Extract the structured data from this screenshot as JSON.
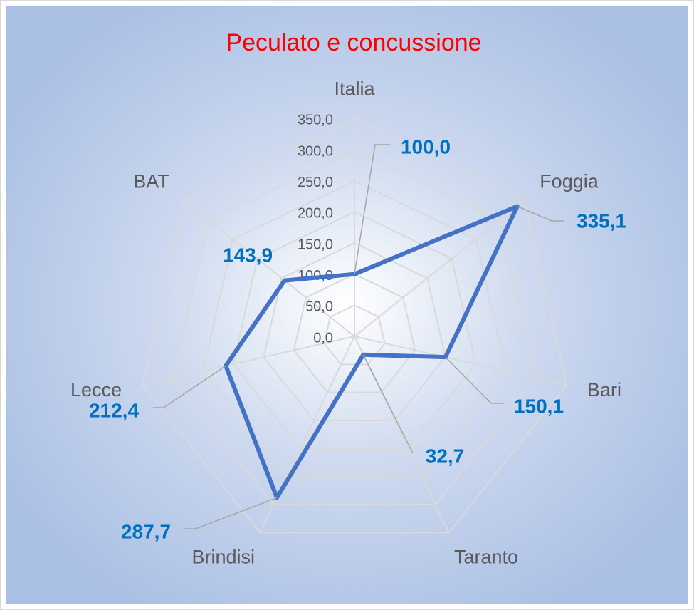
{
  "chart_data": {
    "type": "radar",
    "title": "Peculato e concussione",
    "categories": [
      "Italia",
      "Foggia",
      "Bari",
      "Taranto",
      "Brindisi",
      "Lecce",
      "BAT"
    ],
    "values": [
      100.0,
      335.1,
      150.1,
      32.7,
      287.7,
      212.4,
      143.9
    ],
    "value_labels": [
      "100,0",
      "335,1",
      "150,1",
      "32,7",
      "287,7",
      "212,4",
      "143,9"
    ],
    "color": "#4472c4",
    "label_color": "#0070c0",
    "title_color": "#ff0000",
    "ylim": [
      0,
      350
    ],
    "yticks": [
      {
        "value": 0,
        "label": "0,0"
      },
      {
        "value": 50,
        "label": "50,0"
      },
      {
        "value": 100,
        "label": "100,0"
      },
      {
        "value": 150,
        "label": "150,0"
      },
      {
        "value": 200,
        "label": "200,0"
      },
      {
        "value": 250,
        "label": "250,0"
      },
      {
        "value": 300,
        "label": "300,0"
      },
      {
        "value": 350,
        "label": "350,0"
      }
    ],
    "grid": true
  }
}
